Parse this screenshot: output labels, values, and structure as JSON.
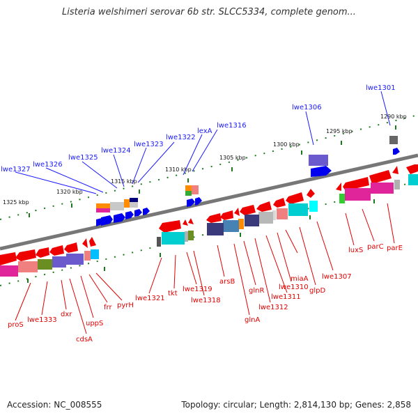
{
  "title": "Listeria welshimeri serovar 6b str. SLCC5334, complete genom...",
  "footer": {
    "accession": "Accession: NC_008555",
    "summary": "Topology: circular; Length: 2,814,130 bp; Genes: 2,858"
  },
  "ruler_labels": [
    "1290 kbp",
    "1295 kbp",
    "1300 kbp",
    "1305 kbp",
    "1310 kbp",
    "1315 kbp",
    "1320 kbp",
    "1325 kbp"
  ],
  "top_gene_labels": [
    "lwe1301",
    "lwe1306",
    "lwe1316",
    "lexA",
    "lwe1322",
    "lwe1323",
    "lwe1324",
    "lwe1325",
    "lwe1326",
    "lwe1327"
  ],
  "bottom_gene_labels": [
    "parE",
    "parC",
    "luxS",
    "lwe1307",
    "glpD",
    "miaA",
    "lwe1310",
    "lwe1311",
    "lwe1312",
    "glnR",
    "glnA",
    "arsB",
    "lwe1318",
    "lwe1319",
    "tkt",
    "lwe1321",
    "pyrH",
    "frr",
    "uppS",
    "cdsA",
    "dxr",
    "lwe1333",
    "proS"
  ],
  "colors": {
    "backbone": "#777777",
    "forward_gene": "#0000ee",
    "reverse_gene": "#ee0000",
    "tick": "#1a7a1a",
    "label_top": "#1a1aff",
    "label_bottom": "#e00000"
  }
}
